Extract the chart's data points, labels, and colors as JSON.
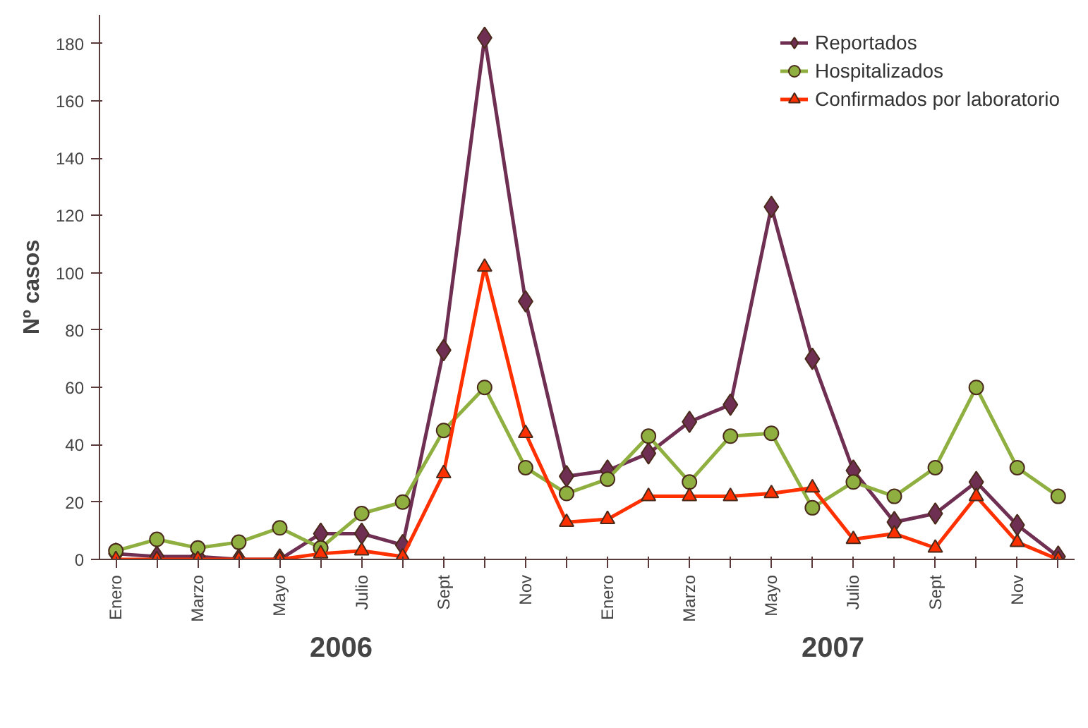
{
  "chart_data": {
    "type": "line",
    "ylabel": "Nº casos",
    "categories": [
      "Enero",
      null,
      "Marzo",
      null,
      "Mayo",
      null,
      "Julio",
      null,
      "Sept",
      null,
      "Nov",
      null,
      "Enero",
      null,
      "Marzo",
      null,
      "Mayo",
      null,
      "Julio",
      null,
      "Sept",
      null,
      "Nov",
      null
    ],
    "series": [
      {
        "name": "Reportados",
        "color": "#6e2f52",
        "marker": "diamond",
        "values": [
          2,
          1,
          1,
          0,
          0,
          9,
          9,
          5,
          73,
          182,
          90,
          29,
          31,
          37,
          48,
          54,
          123,
          70,
          31,
          13,
          16,
          27,
          12,
          1
        ]
      },
      {
        "name": "Hospitalizados",
        "color": "#8fb040",
        "marker": "circle",
        "values": [
          3,
          7,
          4,
          6,
          11,
          4,
          16,
          20,
          45,
          60,
          32,
          23,
          28,
          43,
          27,
          43,
          44,
          18,
          27,
          22,
          32,
          60,
          32,
          22
        ]
      },
      {
        "name": "Confirmados por laboratorio",
        "color": "#ff3000",
        "marker": "triangle",
        "values": [
          0,
          0,
          0,
          0,
          0,
          2,
          3,
          1,
          30,
          102,
          44,
          13,
          14,
          22,
          22,
          22,
          23,
          25,
          7,
          9,
          4,
          22,
          6,
          0
        ]
      }
    ],
    "ylim": [
      0,
      190
    ],
    "yticks": [
      0,
      20,
      40,
      60,
      80,
      100,
      120,
      140,
      160,
      180
    ],
    "annotations": [
      "2006",
      "2007"
    ],
    "legend": "top right",
    "grid": false,
    "line_style": "solid"
  }
}
